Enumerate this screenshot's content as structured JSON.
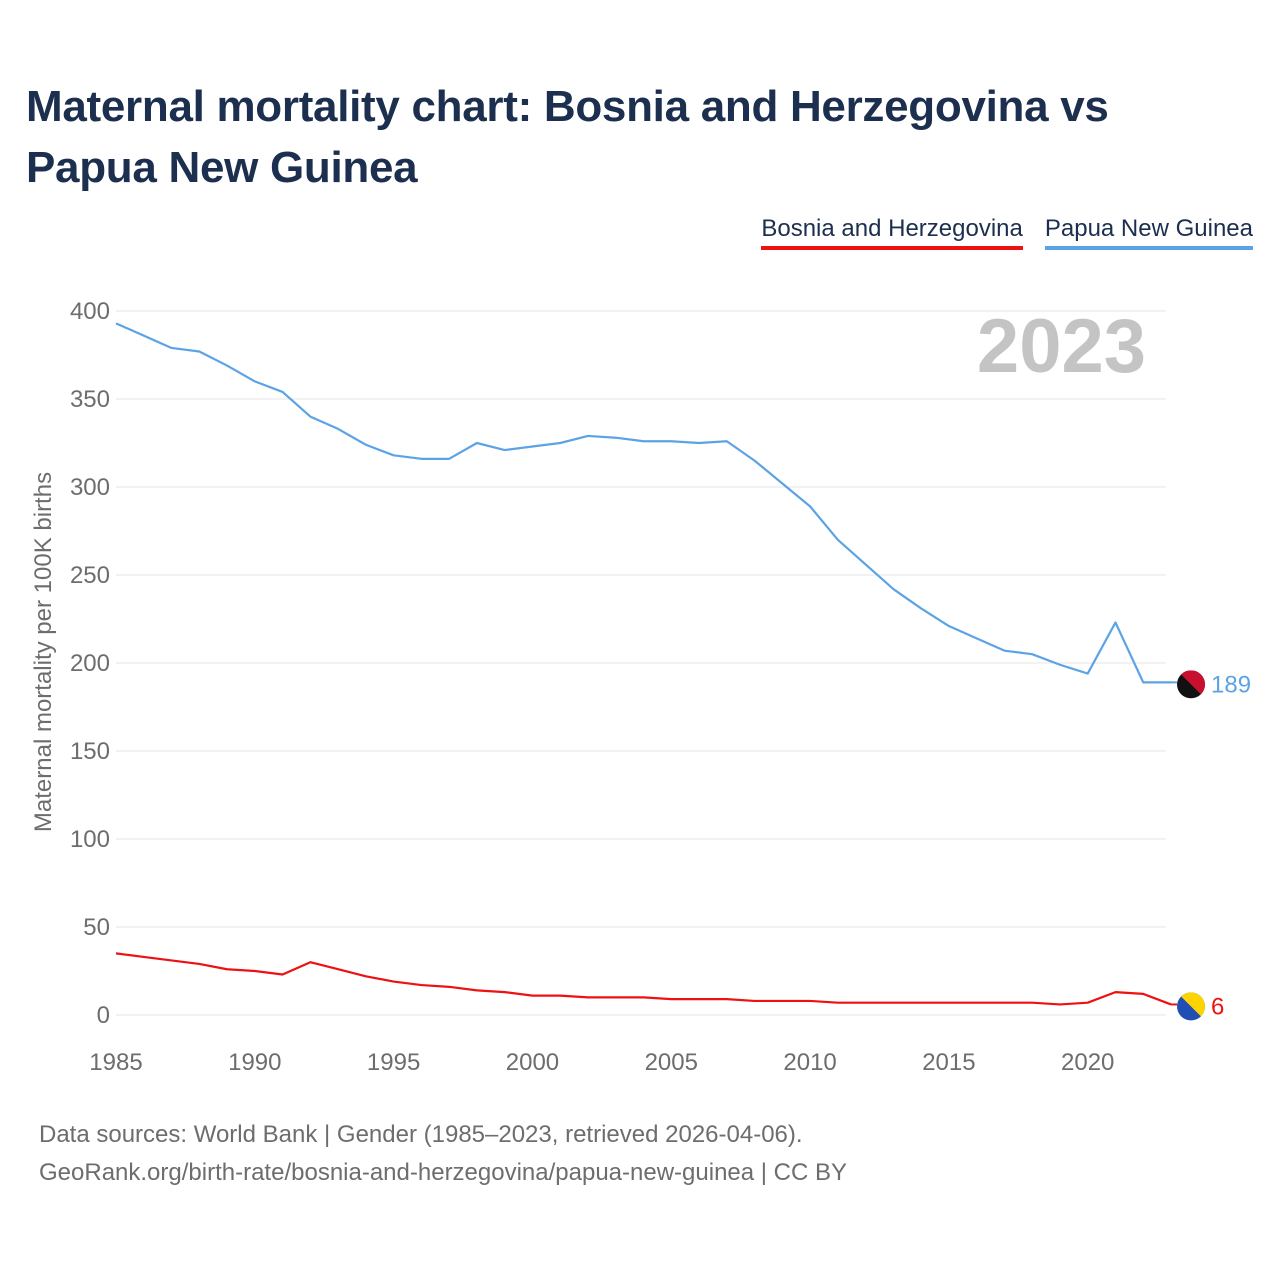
{
  "title": "Maternal mortality chart: Bosnia and Herzegovina vs Papua New Guinea",
  "legend": {
    "bih": "Bosnia and Herzegovina",
    "png": "Papua New Guinea"
  },
  "year_watermark": "2023",
  "footer": {
    "line1": "Data sources: World Bank | Gender (1985–2023, retrieved 2026-04-06).",
    "line2": "GeoRank.org/birth-rate/bosnia-and-herzegovina/papua-new-guinea | CC BY"
  },
  "chart_data": {
    "type": "line",
    "title": "Maternal mortality chart: Bosnia and Herzegovina vs Papua New Guinea",
    "ylabel": "Maternal mortality per 100K births",
    "xlabel": "",
    "ylim": [
      0,
      400
    ],
    "xlim": [
      1985,
      2023
    ],
    "yticks": [
      0,
      50,
      100,
      150,
      200,
      250,
      300,
      350,
      400
    ],
    "xticks": [
      1985,
      1990,
      1995,
      2000,
      2005,
      2010,
      2015,
      2020
    ],
    "x": [
      1985,
      1986,
      1987,
      1988,
      1989,
      1990,
      1991,
      1992,
      1993,
      1994,
      1995,
      1996,
      1997,
      1998,
      1999,
      2000,
      2001,
      2002,
      2003,
      2004,
      2005,
      2006,
      2007,
      2008,
      2009,
      2010,
      2011,
      2012,
      2013,
      2014,
      2015,
      2016,
      2017,
      2018,
      2019,
      2020,
      2021,
      2022,
      2023
    ],
    "series": [
      {
        "name": "Papua New Guinea",
        "color": "#5ca3e6",
        "end_label": "189",
        "values": [
          393,
          386,
          379,
          377,
          369,
          360,
          354,
          340,
          333,
          324,
          318,
          316,
          316,
          325,
          321,
          323,
          325,
          329,
          328,
          326,
          326,
          325,
          326,
          315,
          302,
          289,
          270,
          256,
          242,
          231,
          221,
          214,
          207,
          205,
          199,
          194,
          223,
          189,
          189
        ]
      },
      {
        "name": "Bosnia and Herzegovina",
        "color": "#ee1111",
        "end_label": "6",
        "values": [
          35,
          33,
          31,
          29,
          26,
          25,
          23,
          30,
          26,
          22,
          19,
          17,
          16,
          14,
          13,
          11,
          11,
          10,
          10,
          10,
          9,
          9,
          9,
          8,
          8,
          8,
          7,
          7,
          7,
          7,
          7,
          7,
          7,
          7,
          6,
          7,
          13,
          12,
          6
        ]
      }
    ]
  }
}
